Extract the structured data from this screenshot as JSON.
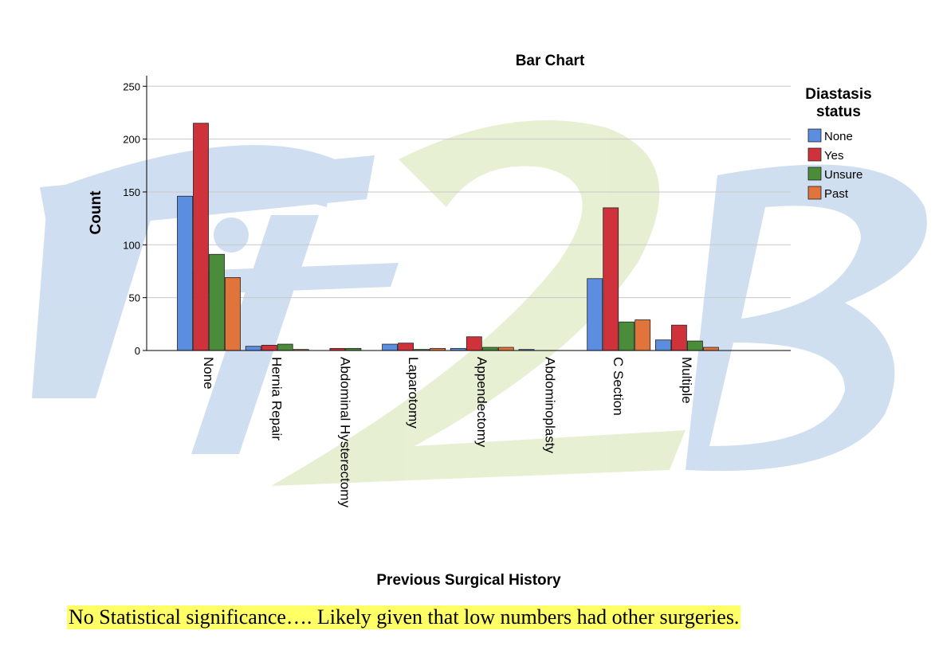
{
  "chart_data": {
    "type": "bar",
    "title": "Bar Chart",
    "xlabel": "Previous Surgical History",
    "ylabel": "Count",
    "ylim": [
      0,
      260
    ],
    "yticks": [
      0,
      50,
      100,
      150,
      200,
      250
    ],
    "grid": true,
    "legend_title": "Diastasis status",
    "legend_position": "right",
    "categories": [
      "None",
      "Hernia Repair",
      "Abdominal Hysterectomy",
      "Laparotomy",
      "Appendectomy",
      "Abdominoplasty",
      "C Section",
      "Multiple"
    ],
    "series": [
      {
        "name": "None",
        "color": "#5b8ee0",
        "values": [
          146,
          4,
          0,
          6,
          2,
          1,
          68,
          10
        ]
      },
      {
        "name": "Yes",
        "color": "#d0323c",
        "values": [
          215,
          5,
          2,
          7,
          13,
          0,
          135,
          24
        ]
      },
      {
        "name": "Unsure",
        "color": "#4a8c3a",
        "values": [
          91,
          6,
          2,
          1,
          3,
          0,
          27,
          9
        ]
      },
      {
        "name": "Past",
        "color": "#e0743a",
        "values": [
          69,
          1,
          0,
          2,
          3,
          0,
          29,
          3
        ]
      }
    ]
  },
  "watermark": {
    "text": "Fit2B"
  },
  "caption": "No Statistical significance…. Likely given that low numbers had other surgeries."
}
